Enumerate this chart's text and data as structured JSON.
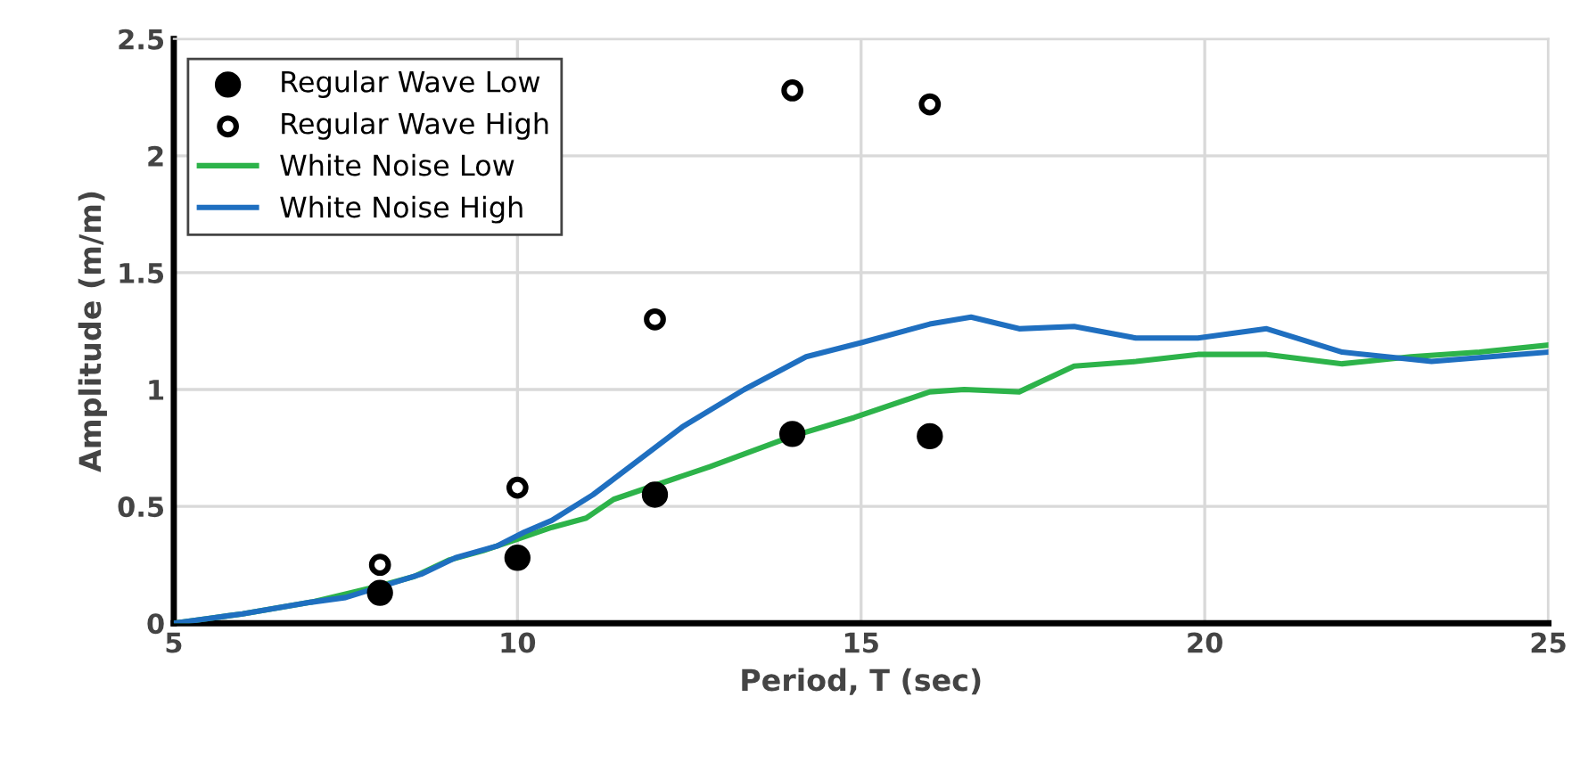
{
  "chart_data": {
    "type": "line",
    "xlabel": "Period, T (sec)",
    "ylabel": "Amplitude (m/m)",
    "xlim": [
      5,
      25
    ],
    "xticks": [
      5,
      10,
      15,
      20,
      25
    ],
    "ylim": [
      0,
      2.5
    ],
    "yticks": [
      0,
      0.5,
      1,
      1.5,
      2,
      2.5
    ],
    "grid": true,
    "legend": "top left",
    "series": [
      {
        "name": "Regular Wave Low",
        "type": "scatter",
        "marker": "circle",
        "color": "#000000",
        "x": [
          8,
          10,
          12,
          14,
          16
        ],
        "values": [
          0.13,
          0.28,
          0.55,
          0.81,
          0.8
        ]
      },
      {
        "name": "Regular Wave High",
        "type": "scatter",
        "marker": "circle",
        "color": "#ffffff",
        "x": [
          8,
          10,
          12,
          14,
          16
        ],
        "values": [
          0.25,
          0.58,
          1.3,
          2.28,
          2.22
        ]
      },
      {
        "name": "White Noise Low",
        "color": "#2db34a",
        "x": [
          5,
          5.5,
          6,
          7,
          8,
          8.5,
          9,
          9.5,
          10,
          10.5,
          11,
          11.4,
          12,
          12.8,
          14,
          14.9,
          16,
          16.5,
          17.3,
          18.1,
          19,
          19.9,
          20.9,
          22,
          23,
          24,
          25
        ],
        "values": [
          0,
          0.02,
          0.04,
          0.09,
          0.16,
          0.2,
          0.27,
          0.31,
          0.36,
          0.41,
          0.45,
          0.53,
          0.59,
          0.67,
          0.8,
          0.88,
          0.99,
          1.0,
          0.99,
          1.1,
          1.12,
          1.15,
          1.15,
          1.11,
          1.14,
          1.16,
          1.19
        ]
      },
      {
        "name": "White Noise High",
        "color": "#1f6fc0",
        "x": [
          5,
          5.5,
          6,
          7,
          7.5,
          8.6,
          9.1,
          9.7,
          10.1,
          10.5,
          11.1,
          12.4,
          13.3,
          14.2,
          15,
          16,
          16.6,
          17.3,
          18.1,
          19,
          19.9,
          20.9,
          22,
          23.3,
          25
        ],
        "values": [
          0,
          0.02,
          0.04,
          0.09,
          0.11,
          0.21,
          0.28,
          0.33,
          0.39,
          0.44,
          0.55,
          0.84,
          1.0,
          1.14,
          1.2,
          1.28,
          1.31,
          1.26,
          1.27,
          1.22,
          1.22,
          1.26,
          1.16,
          1.12,
          1.16
        ]
      }
    ]
  }
}
